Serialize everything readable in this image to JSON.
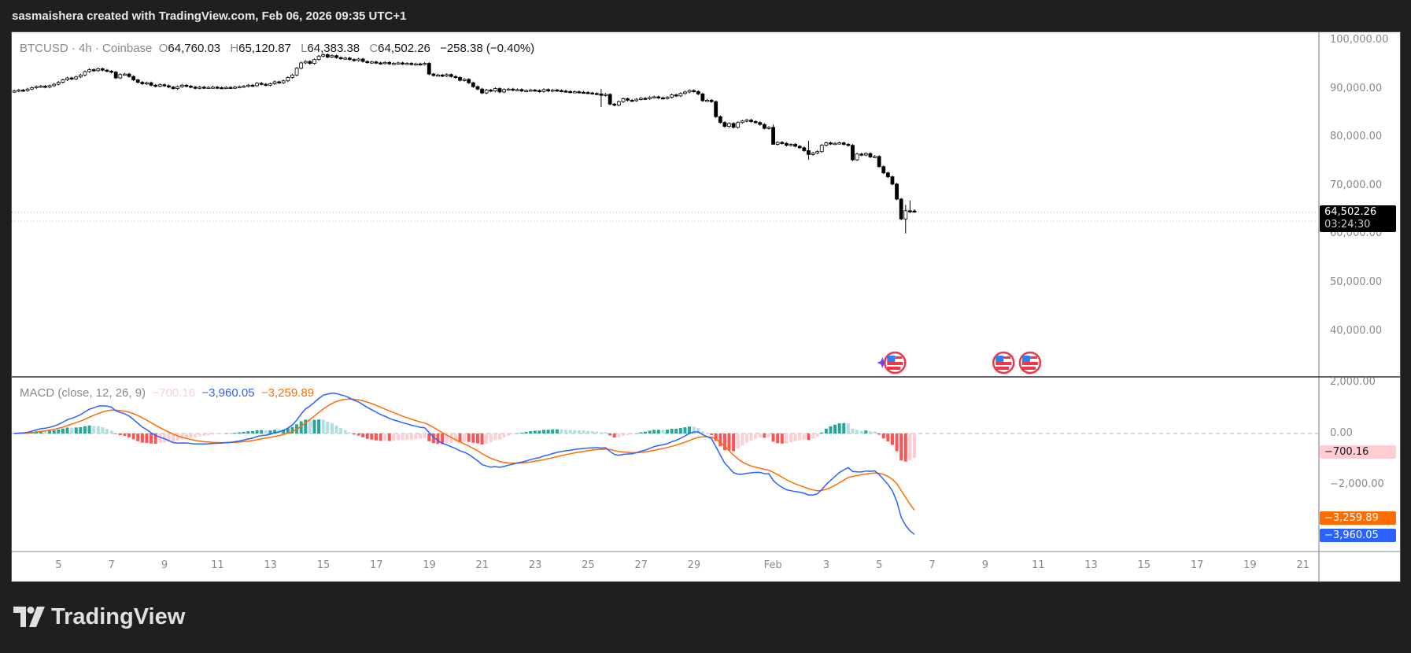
{
  "header": {
    "title": "sasmaishera created with TradingView.com, Feb 06, 2026 09:35 UTC+1"
  },
  "legend": {
    "symbol": "BTCUSD · 4h · Coinbase",
    "o_label": "O",
    "open": "64,760.03",
    "h_label": "H",
    "high": "65,120.87",
    "l_label": "L",
    "low": "64,383.38",
    "c_label": "C",
    "close": "64,502.26",
    "change": "−258.38 (−0.40%)"
  },
  "macd_legend": {
    "name": "MACD (close, 12, 26, 9)",
    "histogram": "−700.16",
    "macd": "−3,960.05",
    "signal": "−3,259.89"
  },
  "price_tag": {
    "price": "64,502.26",
    "countdown": "03:24:30"
  },
  "macd_tags": {
    "histogram": "−700.16",
    "signal": "−3,259.89",
    "macd": "−3,960.05"
  },
  "logo": {
    "text": "TradingView"
  },
  "colors": {
    "up_body": "#ffffff",
    "down_body": "#000000",
    "candle_border": "#000000",
    "macd_line": "#2962ff",
    "signal_line": "#ff6d00",
    "hist_pos_strong": "#26a69a",
    "hist_pos_weak": "#b2dfdb",
    "hist_neg_strong": "#ff5252",
    "hist_neg_weak": "#ffcdd2",
    "price_line": "#b0b0b0",
    "yellow_line": "#f5e33c"
  },
  "chart_data": {
    "type": "candlestick",
    "interval": "4h",
    "first_bar": "2026-01-03 08:00",
    "price_ticks": [
      "100,000.00",
      "90,000.00",
      "80,000.00",
      "70,000.00",
      "60,000.00",
      "50,000.00",
      "40,000.00"
    ],
    "price_tick_values": [
      100000,
      90000,
      80000,
      70000,
      60000,
      50000,
      40000
    ],
    "ylim": [
      33000,
      101500
    ],
    "macd_ticks": [
      "2,000.00",
      "0.00",
      "−2,000.00"
    ],
    "macd_tick_values": [
      2000,
      0,
      -2000
    ],
    "macd_params": [
      12,
      26,
      9
    ],
    "x_ticks": [
      {
        "label": "5",
        "day": 0
      },
      {
        "label": "7",
        "day": 2
      },
      {
        "label": "9",
        "day": 4
      },
      {
        "label": "11",
        "day": 6
      },
      {
        "label": "13",
        "day": 8
      },
      {
        "label": "15",
        "day": 10
      },
      {
        "label": "17",
        "day": 12
      },
      {
        "label": "19",
        "day": 14
      },
      {
        "label": "21",
        "day": 16
      },
      {
        "label": "23",
        "day": 18
      },
      {
        "label": "25",
        "day": 20
      },
      {
        "label": "27",
        "day": 22
      },
      {
        "label": "29",
        "day": 24
      },
      {
        "label": "Feb",
        "day": 27
      },
      {
        "label": "3",
        "day": 29
      },
      {
        "label": "5",
        "day": 31
      },
      {
        "label": "7",
        "day": 33
      },
      {
        "label": "9",
        "day": 35
      },
      {
        "label": "11",
        "day": 37
      },
      {
        "label": "13",
        "day": 39
      },
      {
        "label": "15",
        "day": 41
      },
      {
        "label": "17",
        "day": 43
      },
      {
        "label": "19",
        "day": 45
      },
      {
        "label": "21",
        "day": 47
      }
    ],
    "first_open": 89400,
    "closes": [
      89500,
      89700,
      89600,
      89900,
      90200,
      90400,
      90500,
      90300,
      90600,
      90900,
      91300,
      91800,
      92200,
      92000,
      92400,
      92800,
      93500,
      93900,
      93700,
      94100,
      93800,
      93600,
      93400,
      92200,
      92900,
      93000,
      92500,
      91800,
      91300,
      91000,
      91200,
      90700,
      90500,
      90800,
      90600,
      90300,
      90000,
      90400,
      90700,
      90500,
      90300,
      90100,
      90300,
      90200,
      90250,
      90300,
      90200,
      90150,
      90250,
      90200,
      90300,
      90400,
      90500,
      90700,
      90600,
      91100,
      90900,
      90700,
      91000,
      91400,
      91200,
      91600,
      92300,
      92800,
      94200,
      95300,
      95600,
      95200,
      96000,
      96700,
      97000,
      96500,
      96800,
      96400,
      96200,
      96300,
      96000,
      95800,
      96100,
      95600,
      95400,
      95500,
      95300,
      95200,
      95400,
      95100,
      95200,
      95300,
      95100,
      95200,
      95000,
      95100,
      95000,
      95200,
      93000,
      92700,
      92800,
      92600,
      92900,
      92500,
      92300,
      91700,
      91900,
      91200,
      90400,
      89900,
      89100,
      89700,
      89500,
      90000,
      89300,
      89800,
      89900,
      89700,
      89800,
      89500,
      89600,
      89700,
      89600,
      89400,
      89800,
      89500,
      89700,
      89600,
      89500,
      89400,
      89300,
      89350,
      89250,
      89200,
      89100,
      89000,
      88900,
      88600,
      88800,
      86800,
      86600,
      87300,
      87900,
      87600,
      87500,
      87800,
      88000,
      87900,
      88200,
      88300,
      88100,
      88000,
      88200,
      88700,
      88500,
      89000,
      89300,
      89600,
      89400,
      88900,
      87500,
      87600,
      87300,
      84200,
      83000,
      82200,
      82800,
      82000,
      83000,
      83300,
      83500,
      83200,
      83000,
      82600,
      81800,
      82000,
      78500,
      78900,
      78700,
      78300,
      78500,
      78100,
      77800,
      77200,
      76400,
      76700,
      77000,
      78300,
      78800,
      78600,
      78700,
      78800,
      78500,
      78300,
      75300,
      76500,
      76300,
      76600,
      75900,
      76000,
      73900,
      72600,
      71800,
      70300,
      67200,
      63100,
      64800,
      64760.03,
      64502.26
    ],
    "notable_wicks": [
      {
        "bar": 202,
        "high": 66000,
        "low": 60100
      },
      {
        "bar": 203,
        "high": 66900,
        "low": 64300
      },
      {
        "bar": 204,
        "high": 65120.87,
        "low": 64383.38
      },
      {
        "bar": 133,
        "high": 89900,
        "low": 86200
      },
      {
        "bar": 172,
        "high": 82600,
        "low": 80800
      },
      {
        "bar": 180,
        "high": 79200,
        "low": 75300
      }
    ],
    "last_price": 64502.26,
    "yellow_line_price": 62700,
    "events": [
      {
        "day": 31.6,
        "type": "us-flag",
        "extra": "sparkle"
      },
      {
        "day": 35.7,
        "type": "us-flag"
      },
      {
        "day": 36.7,
        "type": "us-flag"
      }
    ]
  }
}
